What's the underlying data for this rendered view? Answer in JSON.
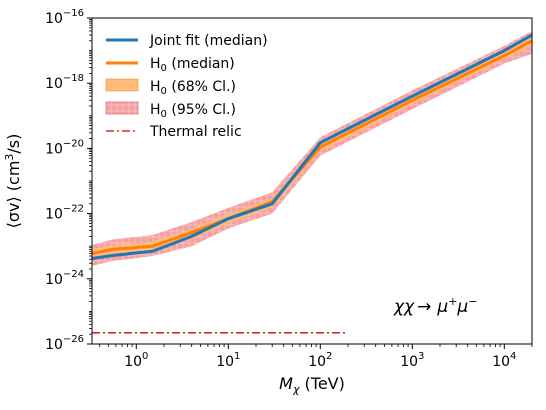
{
  "chart_data": {
    "type": "line",
    "xscale": "log",
    "yscale": "log",
    "xlim": [
      0.33,
      20000
    ],
    "ylim": [
      1e-26,
      1e-16
    ],
    "xlabel": "M_χ (TeV)",
    "ylabel": "⟨σv⟩ (cm³/s)",
    "x_ticks": [
      {
        "value": 1,
        "base": "10",
        "exp": "0"
      },
      {
        "value": 10,
        "base": "10",
        "exp": "1"
      },
      {
        "value": 100,
        "base": "10",
        "exp": "2"
      },
      {
        "value": 1000,
        "base": "10",
        "exp": "3"
      },
      {
        "value": 10000,
        "base": "10",
        "exp": "4"
      }
    ],
    "y_ticks": [
      {
        "value": 1e-26,
        "base": "10",
        "exp": "−26"
      },
      {
        "value": 1e-24,
        "base": "10",
        "exp": "−24"
      },
      {
        "value": 1e-22,
        "base": "10",
        "exp": "−22"
      },
      {
        "value": 1e-20,
        "base": "10",
        "exp": "−20"
      },
      {
        "value": 1e-18,
        "base": "10",
        "exp": "−18"
      },
      {
        "value": 1e-16,
        "base": "10",
        "exp": "−16"
      }
    ],
    "series": [
      {
        "name": "Joint fit (median)",
        "color": "#1f77b4",
        "x": [
          0.33,
          0.55,
          1.5,
          4,
          10,
          30,
          100,
          1000,
          10000,
          20000
        ],
        "y": [
          4.2e-24,
          5.2e-24,
          7e-24,
          2e-23,
          7e-23,
          2e-22,
          1.5e-20,
          4e-19,
          1e-17,
          3e-17
        ]
      },
      {
        "name": "H₀ (median)",
        "color": "#ff7f0e",
        "x": [
          0.33,
          0.55,
          1.5,
          4,
          10,
          30,
          100,
          1000,
          10000,
          20000
        ],
        "y": [
          6e-24,
          8e-24,
          1e-23,
          2.6e-23,
          7e-23,
          2.3e-22,
          1.1e-20,
          3e-19,
          7e-18,
          2e-17
        ]
      },
      {
        "name": "Thermal relic",
        "color": "#d62728",
        "style": "dashdot",
        "x": [
          0.33,
          200
        ],
        "y": [
          2.2e-26,
          2.2e-26
        ]
      }
    ],
    "bands": [
      {
        "name": "H₀ (95% Cl.)",
        "color": "#f08080",
        "x": [
          0.33,
          0.55,
          1.5,
          4,
          10,
          30,
          100,
          1000,
          10000,
          20000
        ],
        "low": [
          2.5e-24,
          3.5e-24,
          5e-24,
          1e-23,
          3.5e-23,
          1e-22,
          6e-21,
          1.6e-19,
          4e-18,
          8e-18
        ],
        "high": [
          1.1e-23,
          1.6e-23,
          2.2e-23,
          5.5e-23,
          1.5e-22,
          4.5e-22,
          2.2e-20,
          6e-19,
          1.4e-17,
          4e-17
        ]
      },
      {
        "name": "H₀ (68% Cl.)",
        "color": "#ffbb78",
        "x": [
          0.33,
          0.55,
          1.5,
          4,
          10,
          30,
          100,
          1000,
          10000,
          20000
        ],
        "low": [
          4e-24,
          5.5e-24,
          7.5e-24,
          1.6e-23,
          5e-23,
          1.5e-22,
          8e-21,
          2.2e-19,
          5.5e-18,
          1.3e-17
        ],
        "high": [
          8e-24,
          1.1e-23,
          1.4e-23,
          3.5e-23,
          1e-22,
          3e-22,
          1.5e-20,
          4e-19,
          9e-18,
          2.8e-17
        ]
      }
    ],
    "legend": {
      "position": "top-left",
      "entries": [
        {
          "base": "Joint fit (median)",
          "sub": "",
          "rest": ""
        },
        {
          "base": "H",
          "sub": "0",
          "rest": " (median)"
        },
        {
          "base": "H",
          "sub": "0",
          "rest": " (68% Cl.)"
        },
        {
          "base": "H",
          "sub": "0",
          "rest": " (95% Cl.)"
        },
        {
          "base": "Thermal relic",
          "sub": "",
          "rest": ""
        }
      ]
    },
    "annotation": {
      "lhs": "χχ",
      "arrow": "→",
      "rhs_base": "μ",
      "rhs_sup1": "+",
      "rhs_mid": "μ",
      "rhs_sup2": "−"
    },
    "x_label_parts": {
      "base": "M",
      "sub": "χ",
      "rest": " (TeV)"
    },
    "y_label_parts": {
      "pre": "⟨σv⟩ (cm",
      "sup": "3",
      "post": "/s)"
    }
  }
}
